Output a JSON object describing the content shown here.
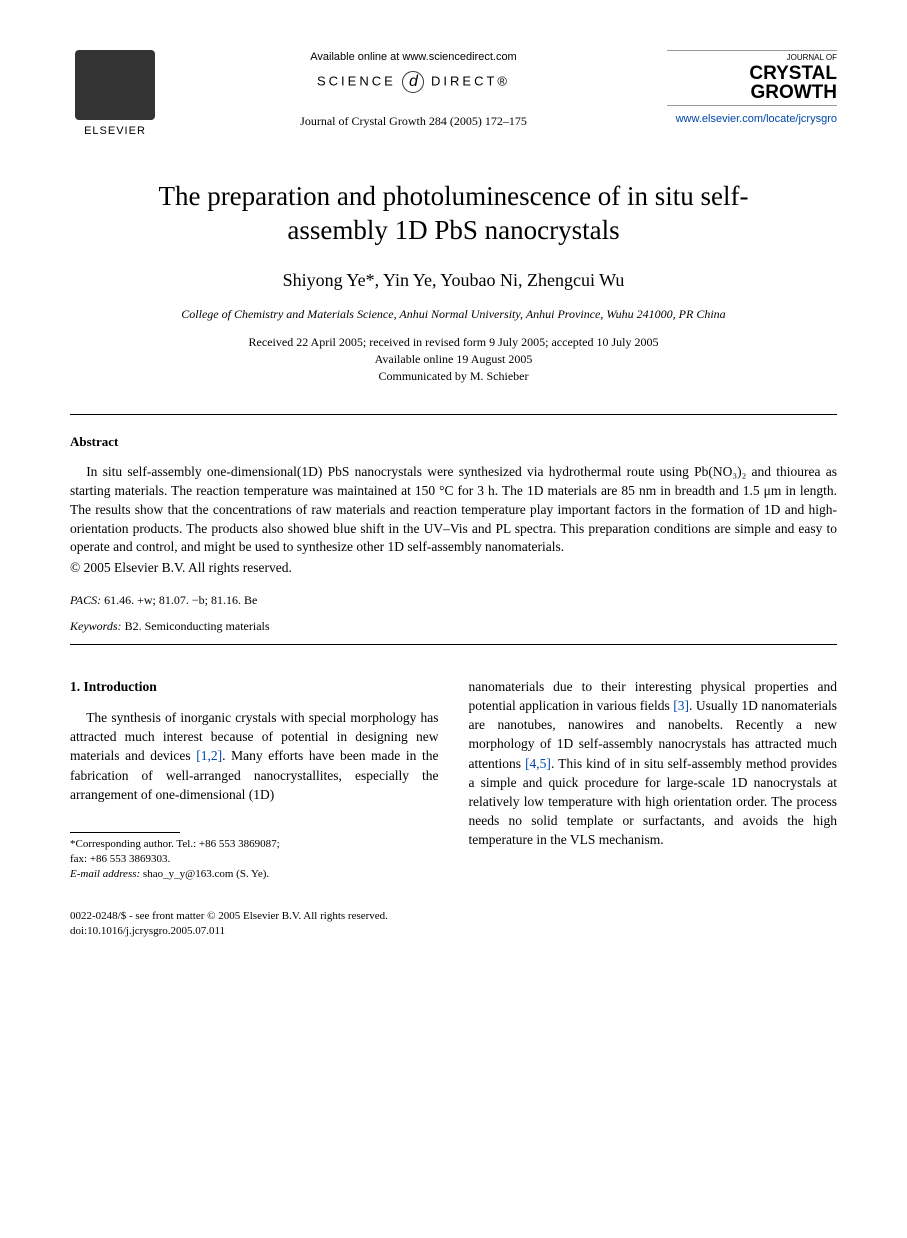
{
  "header": {
    "elsevier_label": "ELSEVIER",
    "available_online": "Available online at www.sciencedirect.com",
    "science": "SCIENCE",
    "direct": "DIRECT®",
    "journal_ref": "Journal of Crystal Growth 284 (2005) 172–175",
    "jcg_label": "JOURNAL OF",
    "jcg_title_1": "CRYSTAL",
    "jcg_title_2": "GROWTH",
    "journal_url": "www.elsevier.com/locate/jcrysgro"
  },
  "title": "The preparation and photoluminescence of in situ self-assembly 1D PbS nanocrystals",
  "authors": "Shiyong Ye*, Yin Ye, Youbao Ni, Zhengcui Wu",
  "affiliation": "College of Chemistry and Materials Science, Anhui Normal University, Anhui Province, Wuhu 241000, PR China",
  "dates": {
    "received": "Received 22 April 2005; received in revised form 9 July 2005; accepted 10 July 2005",
    "available": "Available online 19 August 2005",
    "communicated": "Communicated by M. Schieber"
  },
  "abstract": {
    "heading": "Abstract",
    "text": "In situ self-assembly one-dimensional(1D) PbS nanocrystals were synthesized via hydrothermal route using Pb(NO₃)₂ and thiourea as starting materials. The reaction temperature was maintained at 150 °C for 3 h. The 1D materials are 85 nm in breadth and 1.5 μm in length. The results show that the concentrations of raw materials and reaction temperature play important factors in the formation of 1D and high-orientation products. The products also showed blue shift in the UV–Vis and PL spectra. This preparation conditions are simple and easy to operate and control, and might be used to synthesize other 1D self-assembly nanomaterials.",
    "copyright": "© 2005 Elsevier B.V. All rights reserved."
  },
  "pacs": {
    "label": "PACS:",
    "value": " 61.46. +w; 81.07. −b; 81.16. Be"
  },
  "keywords": {
    "label": "Keywords:",
    "value": " B2. Semiconducting materials"
  },
  "body": {
    "section_heading": "1.  Introduction",
    "col1_p1_a": "The synthesis of inorganic crystals with special morphology has attracted much interest because of potential in designing new materials and devices ",
    "ref12": "[1,2]",
    "col1_p1_b": ". Many efforts have been made in the fabrication of well-arranged nanocrystallites, especially the arrangement of one-dimensional (1D)",
    "col2_p1_a": "nanomaterials due to their interesting physical properties and potential application in various fields ",
    "ref3": "[3]",
    "col2_p1_b": ". Usually 1D nanomaterials are nanotubes, nanowires and nanobelts. Recently a new morphology of 1D self-assembly nanocrystals has attracted much attentions ",
    "ref45": "[4,5]",
    "col2_p1_c": ". This kind of in situ self-assembly method provides a simple and quick procedure for large-scale 1D nanocrystals at relatively low temperature with high orientation order. The process needs no solid template or surfactants, and avoids the high temperature in the VLS mechanism."
  },
  "footnote": {
    "corresponding": "*Corresponding author. Tel.: +86 553 3869087;",
    "fax": "fax: +86 553 3869303.",
    "email_label": "E-mail address:",
    "email": " shao_y_y@163.com (S. Ye)."
  },
  "footer": {
    "line1": "0022-0248/$ - see front matter © 2005 Elsevier B.V. All rights reserved.",
    "line2": "doi:10.1016/j.jcrysgro.2005.07.011"
  }
}
